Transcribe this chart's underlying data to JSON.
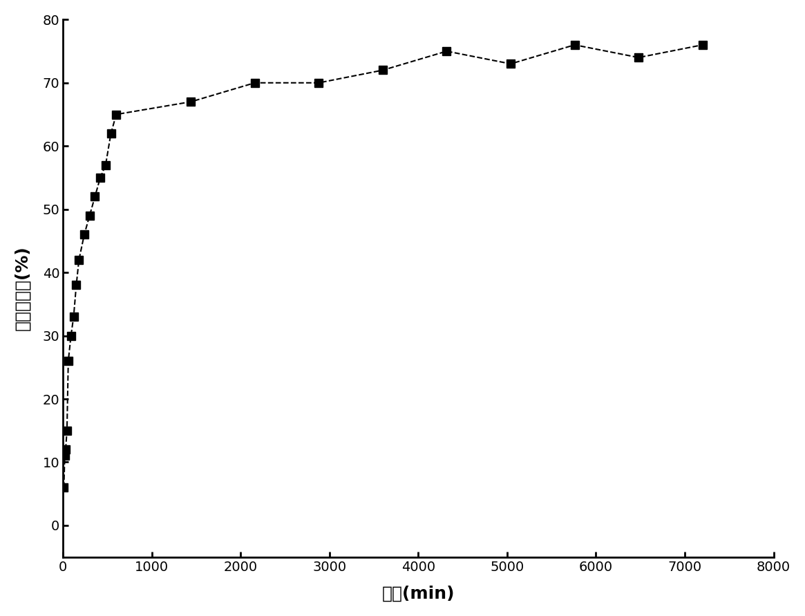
{
  "x": [
    10,
    20,
    30,
    45,
    60,
    90,
    120,
    150,
    180,
    240,
    300,
    360,
    420,
    480,
    540,
    600,
    1440,
    2160,
    2880,
    3600,
    4320,
    5040,
    5760,
    6480,
    7200
  ],
  "y": [
    6,
    11,
    12,
    15,
    26,
    30,
    33,
    38,
    42,
    46,
    49,
    52,
    55,
    57,
    62,
    65,
    67,
    70,
    70,
    72,
    75,
    73,
    76,
    74,
    76
  ],
  "xlabel": "时间(min)",
  "ylabel": "药物释放量(%)",
  "xlim": [
    0,
    8000
  ],
  "ylim": [
    -5,
    80
  ],
  "xticks": [
    0,
    1000,
    2000,
    3000,
    4000,
    5000,
    6000,
    7000,
    8000
  ],
  "yticks": [
    0,
    10,
    20,
    30,
    40,
    50,
    60,
    70,
    80
  ],
  "line_color": "#000000",
  "marker": "s",
  "marker_color": "#000000",
  "marker_size": 9,
  "line_style": "--",
  "line_width": 1.5,
  "background_color": "#ffffff",
  "xlabel_fontsize": 18,
  "ylabel_fontsize": 18,
  "tick_labelsize": 14,
  "spine_linewidth": 2.0
}
